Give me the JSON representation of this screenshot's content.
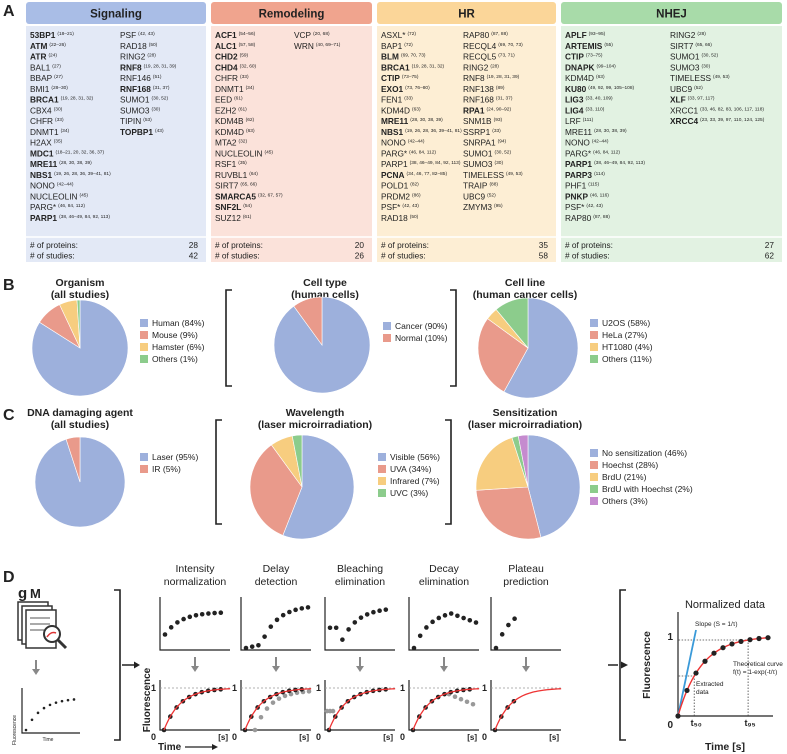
{
  "panel_labels": {
    "a": "A",
    "b": "B",
    "c": "C",
    "d": "D"
  },
  "panel_a": {
    "footer_labels": [
      "# of proteins:",
      "# of studies:"
    ],
    "columns": [
      {
        "title": "Signaling",
        "header_color": "#a9bde6",
        "body_color": "#e3e9f6",
        "proteins": 28,
        "studies": 42,
        "left": [
          {
            "name": "53BP1",
            "ref": "(18–21)",
            "bold": true
          },
          {
            "name": "ATM",
            "ref": "(22–26)",
            "bold": true
          },
          {
            "name": "ATR",
            "ref": "(24)",
            "bold": true
          },
          {
            "name": "BAL1",
            "ref": "(27)"
          },
          {
            "name": "BBAP",
            "ref": "(27)"
          },
          {
            "name": "BMI1",
            "ref": "(28–30)"
          },
          {
            "name": "BRCA1",
            "ref": "(19, 28, 31, 32)",
            "bold": true
          },
          {
            "name": "CBX4",
            "ref": "(30)"
          },
          {
            "name": "CHFR",
            "ref": "(33)"
          },
          {
            "name": "DNMT1",
            "ref": "(34)"
          },
          {
            "name": "H2AX",
            "ref": "(35)"
          },
          {
            "name": "MDC1",
            "ref": "(18–21, 20, 32, 36, 37)",
            "bold": true
          },
          {
            "name": "MRE11",
            "ref": "(28, 30, 38, 39)",
            "bold": true
          },
          {
            "name": "NBS1",
            "ref": "(19, 26, 28, 36, 39–41, 81)",
            "bold": true
          },
          {
            "name": "NONO",
            "ref": "(42–44)"
          },
          {
            "name": "NUCLEOLIN",
            "ref": "(45)"
          },
          {
            "name": "PARG*",
            "ref": "(46, 84, 112)"
          },
          {
            "name": "PARP1",
            "ref": "(38, 46–49, 84, 92, 113)",
            "bold": true
          }
        ],
        "right": [
          {
            "name": "PSF",
            "ref": "(42, 43)"
          },
          {
            "name": "RAD18",
            "ref": "(50)"
          },
          {
            "name": "RING2",
            "ref": "(28)"
          },
          {
            "name": "RNF8",
            "ref": "(19, 28, 31, 39)",
            "bold": true
          },
          {
            "name": "RNF146",
            "ref": "(51)"
          },
          {
            "name": "RNF168",
            "ref": "(31, 37)",
            "bold": true
          },
          {
            "name": "SUMO1",
            "ref": "(30, 52)"
          },
          {
            "name": "SUMO3",
            "ref": "(30)"
          },
          {
            "name": "TIPIN",
            "ref": "(53)"
          },
          {
            "name": "TOPBP1",
            "ref": "(43)",
            "bold": true
          }
        ]
      },
      {
        "title": "Remodeling",
        "header_color": "#f0a48e",
        "body_color": "#fbe2da",
        "proteins": 20,
        "studies": 26,
        "left": [
          {
            "name": "ACF1",
            "ref": "(54–56)",
            "bold": true
          },
          {
            "name": "ALC1",
            "ref": "(57, 58)",
            "bold": true
          },
          {
            "name": "CHD2",
            "ref": "(59)",
            "bold": true
          },
          {
            "name": "CHD4",
            "ref": "(32, 60)",
            "bold": true
          },
          {
            "name": "CHFR",
            "ref": "(33)"
          },
          {
            "name": "DNMT1",
            "ref": "(34)"
          },
          {
            "name": "EED",
            "ref": "(61)"
          },
          {
            "name": "EZH2",
            "ref": "(61)"
          },
          {
            "name": "KDM4B",
            "ref": "(62)"
          },
          {
            "name": "KDM4D",
            "ref": "(63)"
          },
          {
            "name": "MTA2",
            "ref": "(32)"
          },
          {
            "name": "NUCLEOLIN",
            "ref": "(45)"
          },
          {
            "name": "RSF1",
            "ref": "(35)"
          },
          {
            "name": "RUVBL1",
            "ref": "(64)"
          },
          {
            "name": "SIRT7",
            "ref": "(65, 66)"
          },
          {
            "name": "SMARCA5",
            "ref": "(32, 67, 57)",
            "bold": true
          },
          {
            "name": "SNF2L",
            "ref": "(54)",
            "bold": true
          },
          {
            "name": "SUZ12",
            "ref": "(61)"
          }
        ],
        "right": [
          {
            "name": "VCP",
            "ref": "(20, 68)"
          },
          {
            "name": "WRN",
            "ref": "(40, 69–71)"
          }
        ]
      },
      {
        "title": "HR",
        "header_color": "#fbd699",
        "body_color": "#fdeed4",
        "proteins": 35,
        "studies": 58,
        "left": [
          {
            "name": "ASXL*",
            "ref": "(72)"
          },
          {
            "name": "BAP1",
            "ref": "(72)"
          },
          {
            "name": "BLM",
            "ref": "(69, 70, 73)",
            "bold": true
          },
          {
            "name": "BRCA1",
            "ref": "(19, 28, 31, 32)",
            "bold": true
          },
          {
            "name": "CTIP",
            "ref": "(73–75)",
            "bold": true
          },
          {
            "name": "EXO1",
            "ref": "(73, 76–80)",
            "bold": true
          },
          {
            "name": "FEN1",
            "ref": "(33)"
          },
          {
            "name": "KDM4D",
            "ref": "(63)"
          },
          {
            "name": "MRE11",
            "ref": "(28, 30, 38, 39)",
            "bold": true
          },
          {
            "name": "NBS1",
            "ref": "(19, 26, 28, 36, 39–41, 81)",
            "bold": true
          },
          {
            "name": "NONO",
            "ref": "(42–44)"
          },
          {
            "name": "PARG*",
            "ref": "(46, 84, 112)"
          },
          {
            "name": "PARP1",
            "ref": "(38, 46–49, 84, 92, 113)"
          },
          {
            "name": "PCNA",
            "ref": "(34, 46, 77, 82–85)",
            "bold": true
          },
          {
            "name": "POLD1",
            "ref": "(82)"
          },
          {
            "name": "PRDM2",
            "ref": "(86)"
          },
          {
            "name": "PSF*",
            "ref": "(42, 43)"
          },
          {
            "name": "RAD18",
            "ref": "(50)"
          }
        ],
        "right": [
          {
            "name": "RAP80",
            "ref": "(87, 88)"
          },
          {
            "name": "RECQL4",
            "ref": "(69, 70, 73)"
          },
          {
            "name": "RECQL5",
            "ref": "(73, 71)"
          },
          {
            "name": "RING2",
            "ref": "(28)"
          },
          {
            "name": "RNF8",
            "ref": "(19, 28, 31, 39)"
          },
          {
            "name": "RNF138",
            "ref": "(89)"
          },
          {
            "name": "RNF168",
            "ref": "(31, 37)"
          },
          {
            "name": "RPA1",
            "ref": "(24, 90–92)",
            "bold": true
          },
          {
            "name": "SNM1B",
            "ref": "(93)"
          },
          {
            "name": "SSRP1",
            "ref": "(33)"
          },
          {
            "name": "SNRPA1",
            "ref": "(94)"
          },
          {
            "name": "SUMO1",
            "ref": "(30, 52)"
          },
          {
            "name": "SUMO3",
            "ref": "(30)"
          },
          {
            "name": "TIMELESS",
            "ref": "(49, 53)"
          },
          {
            "name": "TRAIP",
            "ref": "(88)"
          },
          {
            "name": "UBC9",
            "ref": "(52)"
          },
          {
            "name": "ZMYM3",
            "ref": "(95)"
          }
        ]
      },
      {
        "title": "NHEJ",
        "header_color": "#a8dba9",
        "body_color": "#e2f2e2",
        "proteins": 27,
        "studies": 62,
        "left": [
          {
            "name": "APLF",
            "ref": "(93–95)",
            "bold": true
          },
          {
            "name": "ARTEMIS",
            "ref": "(55)",
            "bold": true
          },
          {
            "name": "CTIP",
            "ref": "(73–75)",
            "bold": true
          },
          {
            "name": "DNAPK",
            "ref": "(99–104)",
            "bold": true
          },
          {
            "name": "KDM4D",
            "ref": "(63)"
          },
          {
            "name": "KU80",
            "ref": "(49, 92, 99, 105–108)",
            "bold": true
          },
          {
            "name": "LIG3",
            "ref": "(33, 40, 109)",
            "bold": true
          },
          {
            "name": "LIG4",
            "ref": "(33, 110)",
            "bold": true
          },
          {
            "name": "LRF",
            "ref": "(111)"
          },
          {
            "name": "MRE11",
            "ref": "(28, 30, 38, 39)"
          },
          {
            "name": "NONO",
            "ref": "(42–44)"
          },
          {
            "name": "PARG*",
            "ref": "(46, 84, 112)"
          },
          {
            "name": "PARP1",
            "ref": "(38, 46–49, 84, 92, 113)",
            "bold": true
          },
          {
            "name": "PARP3",
            "ref": "(114)",
            "bold": true
          },
          {
            "name": "PHF1",
            "ref": "(115)"
          },
          {
            "name": "PNKP",
            "ref": "(46, 116)",
            "bold": true
          },
          {
            "name": "PSF*",
            "ref": "(42, 43)"
          },
          {
            "name": "RAP80",
            "ref": "(87, 88)"
          }
        ],
        "right": [
          {
            "name": "RING2",
            "ref": "(28)"
          },
          {
            "name": "SIRT7",
            "ref": "(65, 66)"
          },
          {
            "name": "SUMO1",
            "ref": "(30, 52)"
          },
          {
            "name": "SUMO3",
            "ref": "(30)"
          },
          {
            "name": "TIMELESS",
            "ref": "(49, 53)"
          },
          {
            "name": "UBC9",
            "ref": "(52)"
          },
          {
            "name": "XLF",
            "ref": "(33, 97, 117)",
            "bold": true
          },
          {
            "name": "XRCC1",
            "ref": "(33, 46, 82, 83, 106, 117, 118)"
          },
          {
            "name": "XRCC4",
            "ref": "(23, 33, 39, 97, 110, 124, 125)",
            "bold": true
          }
        ]
      }
    ]
  },
  "chart_data": [
    {
      "type": "pie",
      "title": [
        "Organism",
        "(all studies)"
      ],
      "labels": [
        "Human (84%)",
        "Mouse (9%)",
        "Hamster (6%)",
        "Others (1%)"
      ],
      "values": [
        84,
        9,
        6,
        1
      ],
      "colors": [
        "#9db0dc",
        "#e99a8b",
        "#f7cd7f",
        "#8ccc8c"
      ]
    },
    {
      "type": "pie",
      "title": [
        "Cell type",
        "(human cells)"
      ],
      "labels": [
        "Cancer (90%)",
        "Normal (10%)"
      ],
      "values": [
        90,
        10
      ],
      "colors": [
        "#9db0dc",
        "#e99a8b"
      ]
    },
    {
      "type": "pie",
      "title": [
        "Cell line",
        "(human cancer cells)"
      ],
      "labels": [
        "U2OS (58%)",
        "HeLa (27%)",
        "HT1080 (4%)",
        "Others (11%)"
      ],
      "values": [
        58,
        27,
        4,
        11
      ],
      "colors": [
        "#9db0dc",
        "#e99a8b",
        "#f7cd7f",
        "#8ccc8c"
      ]
    },
    {
      "type": "pie",
      "title": [
        "DNA damaging agent",
        "(all studies)"
      ],
      "labels": [
        "Laser (95%)",
        "IR (5%)"
      ],
      "values": [
        95,
        5
      ],
      "colors": [
        "#9db0dc",
        "#e99a8b"
      ]
    },
    {
      "type": "pie",
      "title": [
        "Wavelength",
        "(laser microirradiation)"
      ],
      "labels": [
        "Visible (56%)",
        "UVA (34%)",
        "Infrared (7%)",
        "UVC (3%)"
      ],
      "values": [
        56,
        34,
        7,
        3
      ],
      "colors": [
        "#9db0dc",
        "#e99a8b",
        "#f7cd7f",
        "#8ccc8c"
      ]
    },
    {
      "type": "pie",
      "title": [
        "Sensitization",
        "(laser microirradiation)"
      ],
      "labels": [
        "No sensitization (46%)",
        "Hoechst (28%)",
        "BrdU (21%)",
        "BrdU with Hoechst (2%)",
        "Others (3%)"
      ],
      "values": [
        46,
        28,
        21,
        2,
        3
      ],
      "colors": [
        "#9db0dc",
        "#e99a8b",
        "#f7cd7f",
        "#8ccc8c",
        "#c58bcf"
      ]
    }
  ],
  "panel_d": {
    "logos": [
      "g",
      "M"
    ],
    "icon_y": "Fluorescence",
    "icon_x": "Time",
    "steps": [
      [
        "Intensity",
        "normalization"
      ],
      [
        "Delay",
        "detection"
      ],
      [
        "Bleaching",
        "elimination"
      ],
      [
        "Decay",
        "elimination"
      ],
      [
        "Plateau",
        "prediction"
      ]
    ],
    "y_label": "Fluorescence",
    "x_label": "Time",
    "tick_zero": "0",
    "tick_one": "1",
    "unit": "[s]",
    "result": {
      "title": "Normalized data",
      "slope": "Slope (S = 1/τ)",
      "extracted": [
        "Extracted",
        "data"
      ],
      "theory": [
        "Theoretical curve",
        "f(t) = 1-exp(-t/τ)"
      ],
      "t50": "t₅₀",
      "t95": "t₉₅",
      "x_label": "Time [s]",
      "y_label": "Fluorescence",
      "tick_zero": "0",
      "tick_one": "1"
    }
  }
}
